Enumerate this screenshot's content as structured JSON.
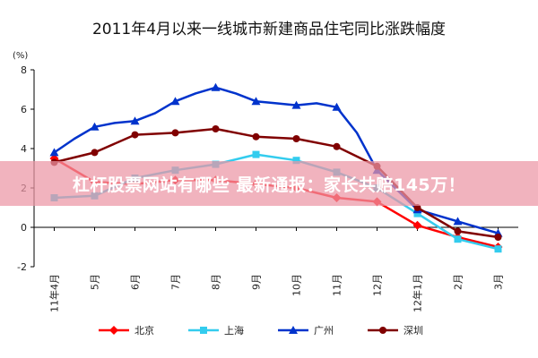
{
  "banner": {
    "text": "杠杆股票网站有哪些 最新通报：家长共赔145万！"
  },
  "chart_data": {
    "type": "line",
    "title": "2011年4月以来一线城市新建商品住宅同比涨跌幅度",
    "ylabel": "(%)",
    "ylim": [
      -2,
      8
    ],
    "yticks": [
      -2,
      0,
      2,
      4,
      6,
      8
    ],
    "categories": [
      "11年4月",
      "5月",
      "6月",
      "7月",
      "8月",
      "9月",
      "10月",
      "11月",
      "12月",
      "12年1月",
      "2月",
      "3月"
    ],
    "x": [
      4,
      5,
      6,
      7,
      8,
      9,
      10,
      11,
      12,
      13,
      14,
      15
    ],
    "xticks": [
      4,
      5,
      6,
      7,
      8,
      9,
      10,
      11,
      12,
      13,
      14,
      15
    ],
    "series": [
      {
        "name": "北京",
        "color": "#ff0000",
        "marker": "diamond",
        "x": [
          4,
          5,
          6,
          7,
          8,
          9,
          10,
          11,
          12,
          13,
          14,
          15
        ],
        "values": [
          3.5,
          2.3,
          2.2,
          2.4,
          2.4,
          2.2,
          2.0,
          1.5,
          1.3,
          0.1,
          -0.5,
          -1.0
        ]
      },
      {
        "name": "上海",
        "color": "#33ccee",
        "marker": "square",
        "x": [
          4,
          5,
          6,
          7,
          8,
          9,
          10,
          11,
          12,
          13,
          14,
          15
        ],
        "values": [
          1.5,
          1.6,
          2.5,
          2.9,
          3.2,
          3.7,
          3.4,
          2.8,
          2.0,
          0.7,
          -0.6,
          -1.1
        ]
      },
      {
        "name": "广州",
        "color": "#0033cc",
        "marker": "triangle",
        "x": [
          4,
          4.5,
          5,
          5.5,
          6,
          6.5,
          7,
          7.5,
          8,
          8.5,
          9,
          9.5,
          10,
          10.5,
          11,
          11.5,
          12,
          13,
          14,
          15
        ],
        "values": [
          3.8,
          4.5,
          5.1,
          5.3,
          5.4,
          5.8,
          6.4,
          6.8,
          7.1,
          6.8,
          6.4,
          6.3,
          6.2,
          6.3,
          6.1,
          4.8,
          2.9,
          0.9,
          0.3,
          -0.3
        ]
      },
      {
        "name": "深圳",
        "color": "#800000",
        "marker": "circle",
        "x": [
          4,
          5,
          6,
          7,
          8,
          9,
          10,
          11,
          12,
          13,
          14,
          15
        ],
        "values": [
          3.3,
          3.8,
          4.7,
          4.8,
          5.0,
          4.6,
          4.5,
          4.1,
          3.1,
          1.0,
          -0.2,
          -0.5
        ]
      }
    ],
    "legend_position": "bottom",
    "grid": false
  }
}
